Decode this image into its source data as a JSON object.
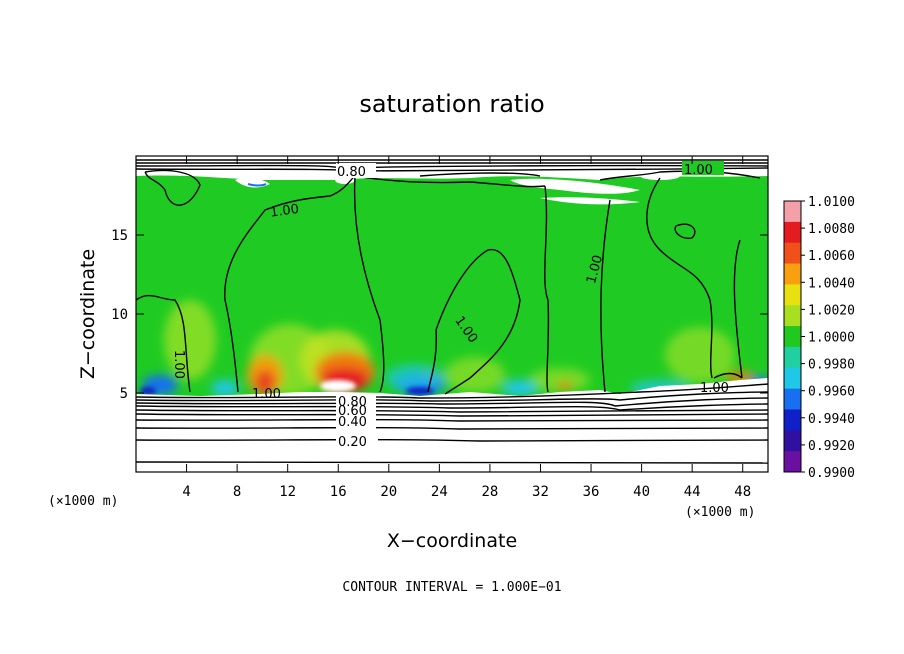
{
  "chart_data": {
    "type": "heatmap",
    "title": "saturation ratio",
    "xlabel": "X−coordinate",
    "ylabel": "Z−coordinate",
    "x_unit": "(×1000 m)",
    "z_unit": "(×1000 m)",
    "xlim": [
      0,
      50
    ],
    "ylim": [
      0,
      20
    ],
    "x_ticks": [
      4,
      8,
      12,
      16,
      20,
      24,
      28,
      32,
      36,
      40,
      44,
      48
    ],
    "y_ticks": [
      5,
      10,
      15
    ],
    "colorbar": {
      "labels": [
        "1.0100",
        "1.0080",
        "1.0060",
        "1.0040",
        "1.0020",
        "1.0000",
        "0.9980",
        "0.9960",
        "0.9940",
        "0.9920",
        "0.9900"
      ],
      "colors": [
        "#f4a0a8",
        "#e41c20",
        "#f0501a",
        "#f8a010",
        "#e8e010",
        "#a8e020",
        "#20c820",
        "#20d0a0",
        "#20c8e8",
        "#1870f0",
        "#1020c8",
        "#3010a0",
        "#6a10a0"
      ]
    },
    "contour_labels": [
      {
        "text": "0.80"
      },
      {
        "text": "1.00"
      },
      {
        "text": "1.00"
      },
      {
        "text": "1.00"
      },
      {
        "text": "1.00"
      },
      {
        "text": "1.00"
      },
      {
        "text": "1.00"
      },
      {
        "text": "1.00"
      },
      {
        "text": "0.80"
      },
      {
        "text": "0.60"
      },
      {
        "text": "0.40"
      },
      {
        "text": "0.20"
      }
    ],
    "contour_interval": "CONTOUR INTERVAL = 1.000E−01"
  }
}
